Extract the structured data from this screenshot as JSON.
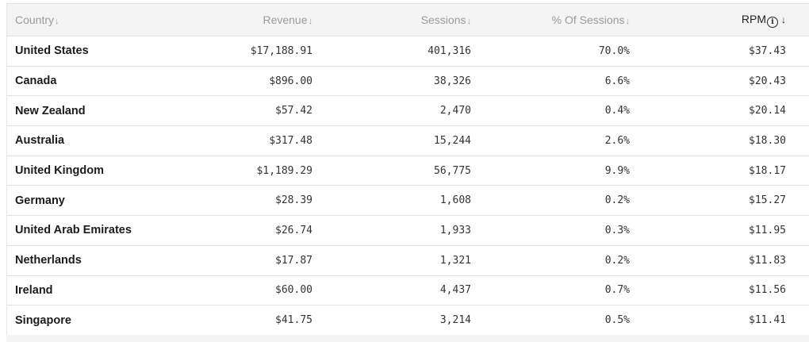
{
  "table": {
    "headers": {
      "country": "Country",
      "revenue": "Revenue",
      "sessions": "Sessions",
      "pct_sessions": "% Of Sessions",
      "rpm": "RPM"
    },
    "sort_arrow": "↓",
    "rpm_sort_arrow": "↓",
    "info_icon_glyph": "i",
    "rows": [
      {
        "country": "United States",
        "revenue": "$17,188.91",
        "sessions": "401,316",
        "pct": "70.0%",
        "rpm": "$37.43"
      },
      {
        "country": "Canada",
        "revenue": "$896.00",
        "sessions": "38,326",
        "pct": "6.6%",
        "rpm": "$20.43"
      },
      {
        "country": "New Zealand",
        "revenue": "$57.42",
        "sessions": "2,470",
        "pct": "0.4%",
        "rpm": "$20.14"
      },
      {
        "country": "Australia",
        "revenue": "$317.48",
        "sessions": "15,244",
        "pct": "2.6%",
        "rpm": "$18.30"
      },
      {
        "country": "United Kingdom",
        "revenue": "$1,189.29",
        "sessions": "56,775",
        "pct": "9.9%",
        "rpm": "$18.17"
      },
      {
        "country": "Germany",
        "revenue": "$28.39",
        "sessions": "1,608",
        "pct": "0.2%",
        "rpm": "$15.27"
      },
      {
        "country": "United Arab Emirates",
        "revenue": "$26.74",
        "sessions": "1,933",
        "pct": "0.3%",
        "rpm": "$11.95"
      },
      {
        "country": "Netherlands",
        "revenue": "$17.87",
        "sessions": "1,321",
        "pct": "0.2%",
        "rpm": "$11.83"
      },
      {
        "country": "Ireland",
        "revenue": "$60.00",
        "sessions": "4,437",
        "pct": "0.7%",
        "rpm": "$11.56"
      },
      {
        "country": "Singapore",
        "revenue": "$41.75",
        "sessions": "3,214",
        "pct": "0.5%",
        "rpm": "$11.41"
      }
    ]
  }
}
